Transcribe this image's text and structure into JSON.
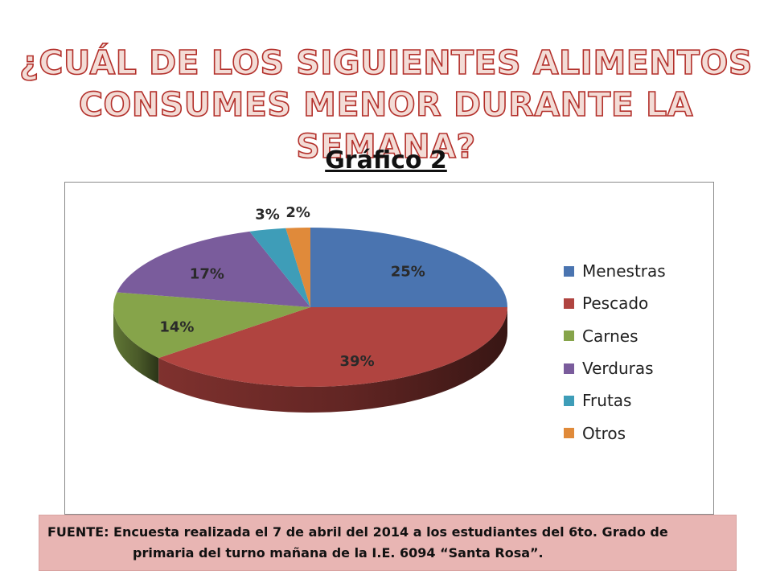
{
  "title_line1": "¿CUÁL DE LOS SIGUIENTES ALIMENTOS",
  "title_line2": "CONSUMES MENOR DURANTE LA SEMANA?",
  "subtitle": "Gráfico 2",
  "source_line1": "FUENTE:  Encuesta realizada el 7 de abril del 2014 a los estudiantes del 6to. Grado de",
  "source_line2": "primaria del turno mañana de la I.E. 6094 “Santa Rosa”.",
  "chart_data": {
    "type": "pie",
    "three_d": true,
    "start_angle_deg": 0,
    "direction": "clockwise-from-top",
    "legend_position": "right",
    "slices": [
      {
        "label": "Menestras",
        "value": 25,
        "display": "25%",
        "color": "#4a74b0"
      },
      {
        "label": "Pescado",
        "value": 39,
        "display": "39%",
        "color": "#b04440"
      },
      {
        "label": "Carnes",
        "value": 14,
        "display": "14%",
        "color": "#86a44a"
      },
      {
        "label": "Verduras",
        "value": 17,
        "display": "17%",
        "color": "#7a5c9c"
      },
      {
        "label": "Frutas",
        "value": 3,
        "display": "3%",
        "color": "#3e9db8"
      },
      {
        "label": "Otros",
        "value": 2,
        "display": "2%",
        "color": "#e08a3a"
      }
    ]
  }
}
